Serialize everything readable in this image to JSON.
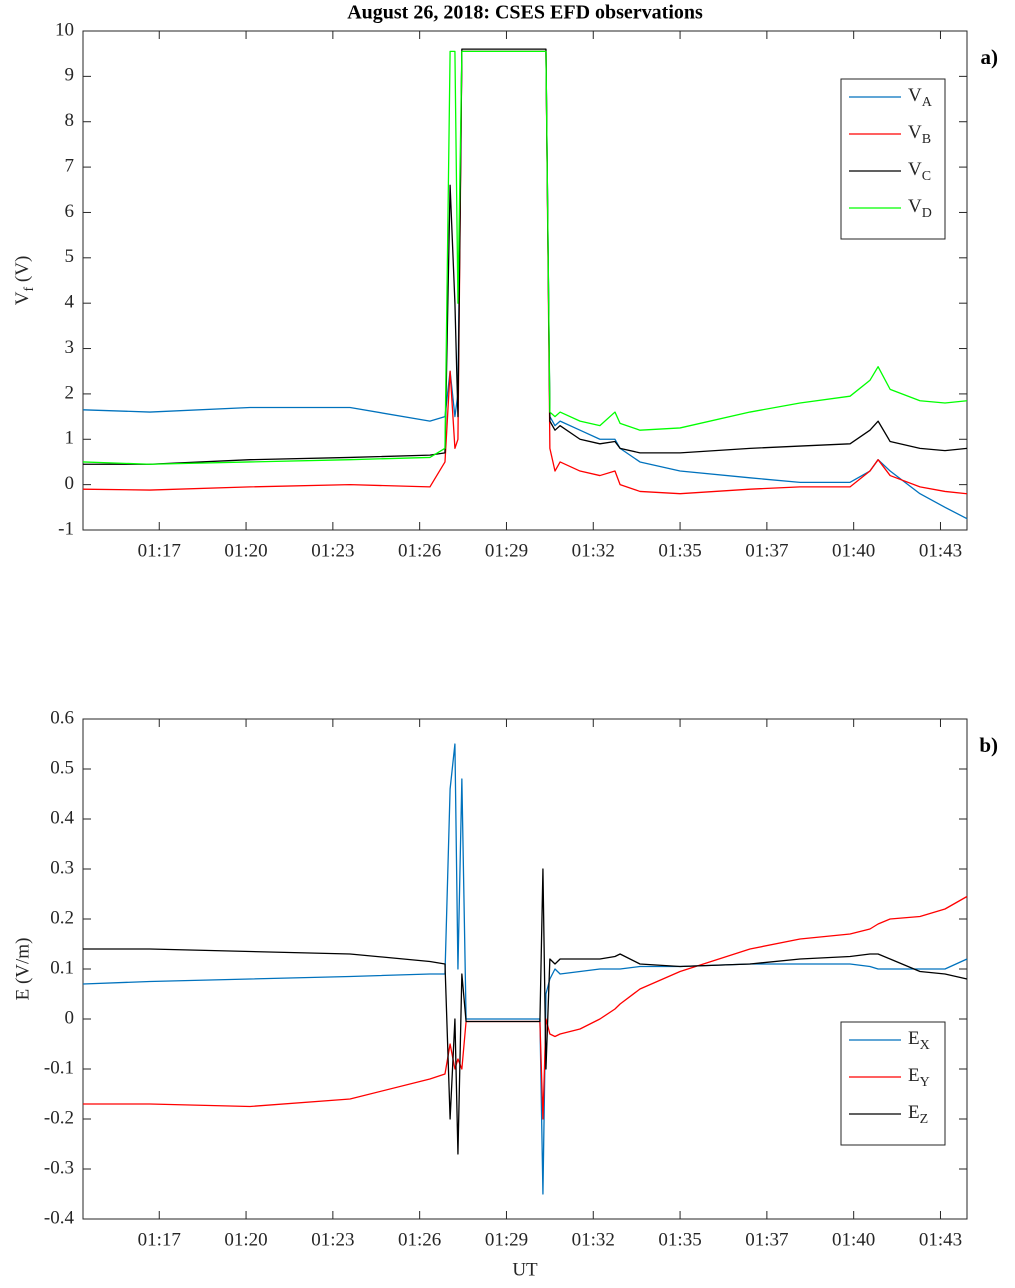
{
  "chart_data": [
    {
      "type": "line",
      "title": "August 26, 2018: CSES EFD observations",
      "panel_label": "a)",
      "ylabel": "V_f (V)",
      "x": [
        14.67,
        16.89,
        20.21,
        23.53,
        26.18,
        26.68,
        26.85,
        27.01,
        27.11,
        27.24,
        27.38,
        27.51,
        29.83,
        29.93,
        30.03,
        30.16,
        30.33,
        30.5,
        31.16,
        31.82,
        32.32,
        32.49,
        33.15,
        34.48,
        36.8,
        38.46,
        40.12,
        40.78,
        41.05,
        41.45,
        42.44,
        43.27,
        44.0
      ],
      "xlim": [
        14.67,
        44.0
      ],
      "xticks": [
        {
          "value": 17.2,
          "label": "01:17"
        },
        {
          "value": 20.08,
          "label": "01:20"
        },
        {
          "value": 22.96,
          "label": "01:23"
        },
        {
          "value": 25.84,
          "label": "01:26"
        },
        {
          "value": 28.72,
          "label": "01:29"
        },
        {
          "value": 31.6,
          "label": "01:32"
        },
        {
          "value": 34.48,
          "label": "01:35"
        },
        {
          "value": 37.36,
          "label": "01:37"
        },
        {
          "value": 40.24,
          "label": "01:40"
        },
        {
          "value": 43.12,
          "label": "01:43"
        }
      ],
      "ylim": [
        -1,
        10
      ],
      "yticks": [
        -1,
        0,
        1,
        2,
        3,
        4,
        5,
        6,
        7,
        8,
        9,
        10
      ],
      "legend": "upper right",
      "series": [
        {
          "name": "V_A",
          "color": "#0072bd",
          "values": [
            1.65,
            1.6,
            1.7,
            1.7,
            1.4,
            1.5,
            2.5,
            1.5,
            2.0,
            9.55,
            9.55,
            9.55,
            9.55,
            9.55,
            9.55,
            1.5,
            1.3,
            1.4,
            1.2,
            1.0,
            1.0,
            0.8,
            0.5,
            0.3,
            0.15,
            0.05,
            0.05,
            0.3,
            0.55,
            0.3,
            -0.2,
            -0.5,
            -0.75
          ]
        },
        {
          "name": "V_B",
          "color": "#ff0000",
          "values": [
            -0.1,
            -0.12,
            -0.05,
            0.0,
            -0.05,
            0.5,
            2.5,
            0.8,
            1.0,
            9.55,
            9.55,
            9.55,
            9.55,
            9.55,
            9.55,
            0.8,
            0.3,
            0.5,
            0.3,
            0.2,
            0.3,
            0.0,
            -0.15,
            -0.2,
            -0.1,
            -0.05,
            -0.05,
            0.3,
            0.55,
            0.2,
            -0.05,
            -0.15,
            -0.2
          ]
        },
        {
          "name": "V_C",
          "color": "#000000",
          "values": [
            0.45,
            0.45,
            0.55,
            0.6,
            0.65,
            0.7,
            6.6,
            4.0,
            1.5,
            9.6,
            9.6,
            9.6,
            9.6,
            9.6,
            9.6,
            1.4,
            1.2,
            1.3,
            1.0,
            0.9,
            0.95,
            0.8,
            0.7,
            0.7,
            0.8,
            0.85,
            0.9,
            1.2,
            1.4,
            0.95,
            0.8,
            0.75,
            0.8
          ]
        },
        {
          "name": "V_D",
          "color": "#00ff00",
          "values": [
            0.5,
            0.45,
            0.5,
            0.55,
            0.6,
            0.8,
            9.55,
            9.55,
            4.0,
            9.55,
            9.55,
            9.55,
            9.55,
            9.55,
            9.55,
            1.6,
            1.5,
            1.6,
            1.4,
            1.3,
            1.6,
            1.35,
            1.2,
            1.25,
            1.6,
            1.8,
            1.95,
            2.3,
            2.6,
            2.1,
            1.85,
            1.8,
            1.85
          ]
        }
      ]
    },
    {
      "type": "line",
      "panel_label": "b)",
      "ylabel": "E (V/m)",
      "xlabel": "UT",
      "x": [
        14.67,
        16.89,
        20.21,
        23.53,
        26.18,
        26.68,
        26.85,
        27.01,
        27.11,
        27.24,
        27.38,
        27.51,
        29.83,
        29.93,
        30.03,
        30.16,
        30.33,
        30.5,
        31.16,
        31.82,
        32.32,
        32.49,
        33.15,
        34.48,
        36.8,
        38.46,
        40.12,
        40.78,
        41.05,
        41.45,
        42.44,
        43.27,
        44.0
      ],
      "xlim": [
        14.67,
        44.0
      ],
      "xticks": [
        {
          "value": 17.2,
          "label": "01:17"
        },
        {
          "value": 20.08,
          "label": "01:20"
        },
        {
          "value": 22.96,
          "label": "01:23"
        },
        {
          "value": 25.84,
          "label": "01:26"
        },
        {
          "value": 28.72,
          "label": "01:29"
        },
        {
          "value": 31.6,
          "label": "01:32"
        },
        {
          "value": 34.48,
          "label": "01:35"
        },
        {
          "value": 37.36,
          "label": "01:37"
        },
        {
          "value": 40.24,
          "label": "01:40"
        },
        {
          "value": 43.12,
          "label": "01:43"
        }
      ],
      "ylim": [
        -0.4,
        0.6
      ],
      "yticks": [
        -0.4,
        -0.3,
        -0.2,
        -0.1,
        0,
        0.1,
        0.2,
        0.3,
        0.4,
        0.5,
        0.6
      ],
      "legend": "lower right",
      "series": [
        {
          "name": "E_X",
          "color": "#0072bd",
          "values": [
            0.07,
            0.075,
            0.08,
            0.085,
            0.09,
            0.09,
            0.46,
            0.55,
            0.1,
            0.48,
            0.0,
            0.0,
            0.0,
            -0.35,
            0.05,
            0.08,
            0.1,
            0.09,
            0.095,
            0.1,
            0.1,
            0.1,
            0.105,
            0.105,
            0.11,
            0.11,
            0.11,
            0.105,
            0.1,
            0.1,
            0.1,
            0.1,
            0.12
          ]
        },
        {
          "name": "E_Y",
          "color": "#ff0000",
          "values": [
            -0.17,
            -0.17,
            -0.175,
            -0.16,
            -0.12,
            -0.11,
            -0.05,
            -0.1,
            -0.08,
            -0.1,
            -0.005,
            -0.005,
            -0.005,
            -0.2,
            0.0,
            -0.03,
            -0.035,
            -0.03,
            -0.02,
            0.0,
            0.02,
            0.03,
            0.06,
            0.095,
            0.14,
            0.16,
            0.17,
            0.18,
            0.19,
            0.2,
            0.205,
            0.22,
            0.245
          ]
        },
        {
          "name": "E_Z",
          "color": "#000000",
          "values": [
            0.14,
            0.14,
            0.135,
            0.13,
            0.115,
            0.11,
            -0.2,
            0.0,
            -0.27,
            0.09,
            -0.005,
            -0.005,
            -0.005,
            0.3,
            -0.1,
            0.12,
            0.11,
            0.12,
            0.12,
            0.12,
            0.125,
            0.13,
            0.11,
            0.105,
            0.11,
            0.12,
            0.125,
            0.13,
            0.13,
            0.12,
            0.095,
            0.09,
            0.08
          ]
        }
      ]
    }
  ]
}
